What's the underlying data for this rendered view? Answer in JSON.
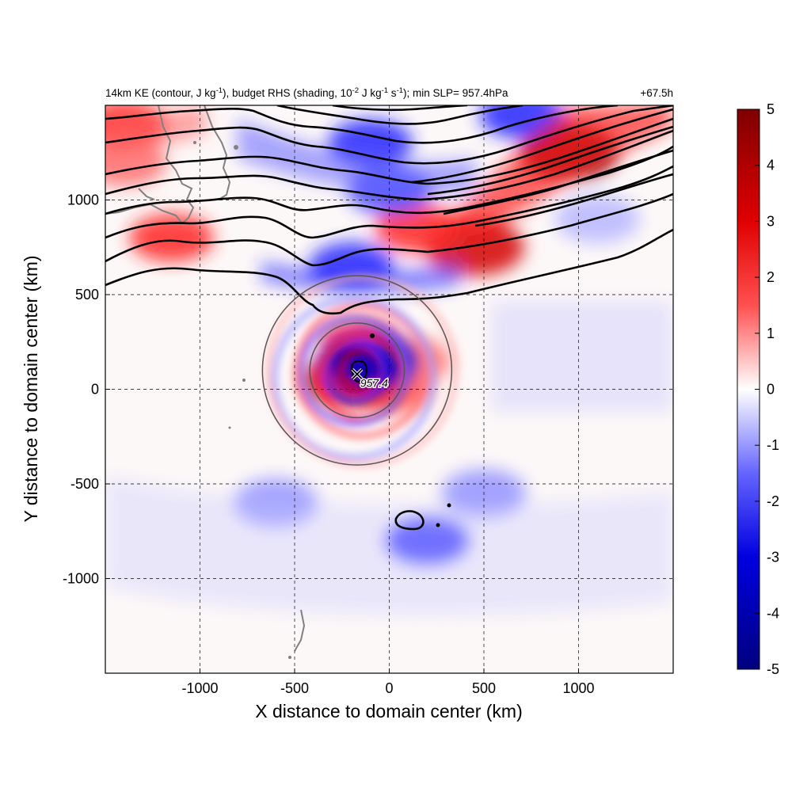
{
  "title": {
    "left_parts": [
      "14km KE (contour, J kg",
      "-1",
      "), budget RHS (shading, 10",
      "-2",
      " J kg",
      "-1",
      " s",
      "-1",
      "); min SLP= 957.4hPa"
    ],
    "right": "+67.5h"
  },
  "chart_data": {
    "type": "heatmap",
    "xlabel": "X distance to domain center (km)",
    "ylabel": "Y distance to domain center (km)",
    "xlim": [
      -1500,
      1500
    ],
    "ylim": [
      -1500,
      1500
    ],
    "xticks": [
      -1000,
      -500,
      0,
      500,
      1000
    ],
    "yticks": [
      -1000,
      -500,
      0,
      500,
      1000
    ],
    "grid": "dashed",
    "colorbar": {
      "range": [
        -5,
        5
      ],
      "ticks": [
        5,
        4,
        3,
        2,
        1,
        0,
        -1,
        -2,
        -3,
        -4,
        -5
      ],
      "colormap": [
        "#00007f",
        "#0000ff",
        "#ffffff",
        "#ff0000",
        "#7f0000"
      ],
      "placement": "right"
    },
    "center_marker": {
      "x": -170,
      "y": 80,
      "label": "957.4"
    },
    "range_rings": [
      {
        "center": [
          -170,
          100
        ],
        "radius_km": 500
      },
      {
        "center": [
          -170,
          100
        ],
        "radius_km": 1000
      }
    ],
    "shading_features": [
      {
        "x": 950,
        "y": 1250,
        "value": 5,
        "note": "strong positive band NE"
      },
      {
        "x": 450,
        "y": 750,
        "value": 4
      },
      {
        "x": 150,
        "y": 850,
        "value": 3
      },
      {
        "x": -1150,
        "y": 800,
        "value": 3
      },
      {
        "x": -1400,
        "y": 1400,
        "value": 3
      },
      {
        "x": -1400,
        "y": 1200,
        "value": 2
      },
      {
        "x": -150,
        "y": 250,
        "value": 3
      },
      {
        "x": 0,
        "y": 0,
        "value": 2.5
      },
      {
        "x": 100,
        "y": 150,
        "value": 2
      },
      {
        "x": -200,
        "y": 50,
        "value": 4
      },
      {
        "x": -100,
        "y": 1300,
        "value": -3
      },
      {
        "x": 700,
        "y": 1450,
        "value": -3
      },
      {
        "x": -200,
        "y": 650,
        "value": -3
      },
      {
        "x": 0,
        "y": 1050,
        "value": -2.5
      },
      {
        "x": -100,
        "y": 150,
        "value": -4
      },
      {
        "x": 200,
        "y": -800,
        "value": -3
      },
      {
        "x": 500,
        "y": -550,
        "value": -1.5
      },
      {
        "x": -600,
        "y": -600,
        "value": -1.5
      },
      {
        "x": 1100,
        "y": 900,
        "value": -1
      }
    ]
  }
}
